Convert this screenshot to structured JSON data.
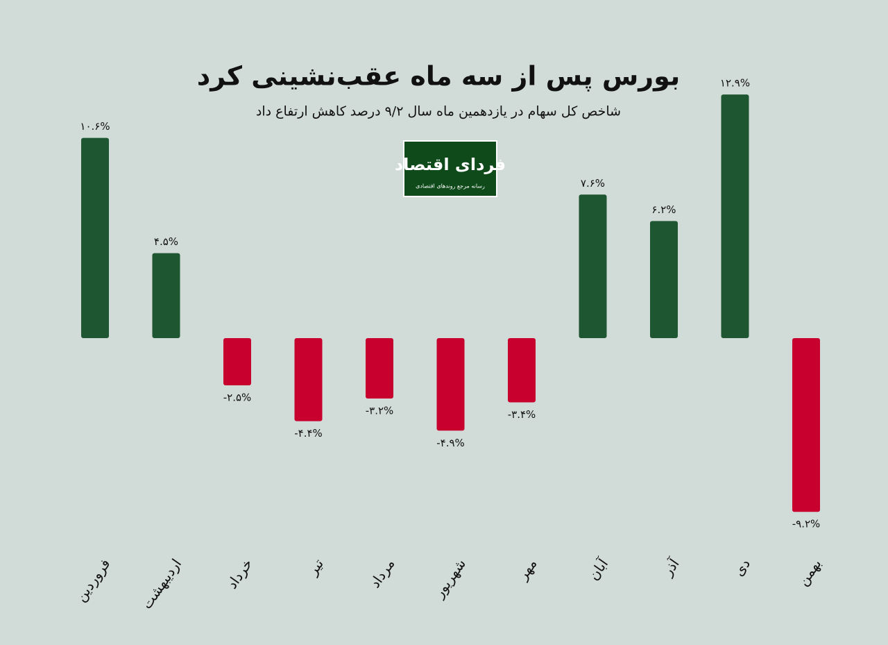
{
  "chart_data": {
    "type": "bar",
    "title": "بورس پس از سه ماه عقب‌نشینی کرد",
    "subtitle": "شاخص کل سهام در یازدهمین ماه سال ۹/۲ درصد کاهش ارتفاع داد",
    "categories": [
      "فروردین",
      "اردیبهشت",
      "خرداد",
      "تیر",
      "مرداد",
      "شهریور",
      "مهر",
      "آبان",
      "آذر",
      "دی",
      "بهمن"
    ],
    "values": [
      10.6,
      4.5,
      -2.5,
      -4.4,
      -3.2,
      -4.9,
      -3.4,
      7.6,
      6.2,
      12.9,
      -9.2
    ],
    "value_labels": [
      "۱۰.۶%",
      "۴.۵%",
      "-۲.۵%",
      "-۴.۴%",
      "-۳.۲%",
      "-۴.۹%",
      "-۳.۴%",
      "۷.۶%",
      "۶.۲%",
      "۱۲.۹%",
      "-۹.۲%"
    ],
    "positive_color": "#1e5631",
    "negative_color": "#c8002d"
  },
  "logo": {
    "name": "فردای اقتصاد",
    "tagline": "رسانه مرجع روندهای اقتصادی"
  }
}
